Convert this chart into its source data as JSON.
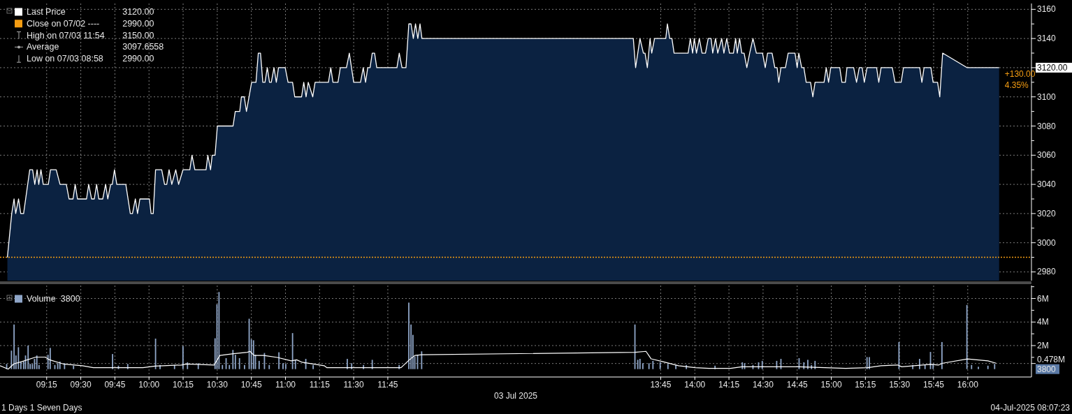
{
  "chart_data": [
    {
      "type": "area",
      "xlim": [
        8.908,
        16.467
      ],
      "ylim": [
        2974,
        3164
      ],
      "grid": true,
      "tick_labels": "y",
      "legend": "top left",
      "xticks": [
        {
          "value": 9.25,
          "label": null
        },
        {
          "value": 9.5,
          "label": null
        },
        {
          "value": 9.75,
          "label": null
        },
        {
          "value": 10,
          "label": null
        },
        {
          "value": 10.25,
          "label": null
        },
        {
          "value": 10.5,
          "label": null
        },
        {
          "value": 10.75,
          "label": null
        },
        {
          "value": 11,
          "label": null
        },
        {
          "value": 11.25,
          "label": null
        },
        {
          "value": 11.5,
          "label": null
        },
        {
          "value": 11.75,
          "label": null
        },
        {
          "value": 13.75,
          "label": null
        },
        {
          "value": 14,
          "label": null
        },
        {
          "value": 14.25,
          "label": null
        },
        {
          "value": 14.5,
          "label": null
        },
        {
          "value": 14.75,
          "label": null
        },
        {
          "value": 15,
          "label": null
        },
        {
          "value": 15.25,
          "label": null
        },
        {
          "value": 15.5,
          "label": null
        },
        {
          "value": 15.75,
          "label": null
        },
        {
          "value": 16,
          "label": null
        }
      ],
      "yticks": [
        2980,
        {
          "value": 2990,
          "label": null
        },
        3000,
        {
          "value": 3010,
          "label": null
        },
        3020,
        {
          "value": 3030,
          "label": null
        },
        3040,
        {
          "value": 3050,
          "label": null
        },
        3060,
        {
          "value": 3070,
          "label": null
        },
        3080,
        {
          "value": 3090,
          "label": null
        },
        3100,
        {
          "value": 3110,
          "label": null
        },
        {
          "value": 3120,
          "label": "3120.00"
        },
        {
          "value": 3130,
          "label": null
        },
        3140,
        {
          "value": 3150,
          "label": null
        },
        3160
      ],
      "series": [
        {
          "name": "Last Price",
          "color": "#ffffff",
          "x": [
            8.962,
            8.994,
            9.011,
            9.023,
            9.044,
            9.06,
            9.081,
            9.126,
            9.147,
            9.163,
            9.18,
            9.192,
            9.208,
            9.225,
            9.262,
            9.278,
            9.32,
            9.348,
            9.394,
            9.414,
            9.443,
            9.459,
            9.476,
            9.542,
            9.558,
            9.579,
            9.599,
            9.616,
            9.632,
            9.661,
            9.682,
            9.698,
            9.719,
            9.731,
            9.747,
            9.764,
            9.83,
            9.863,
            9.879,
            9.9,
            9.916,
            9.933,
            10.003,
            10.015,
            10.031,
            10.048,
            10.093,
            10.114,
            10.13,
            10.147,
            10.167,
            10.196,
            10.217,
            10.249,
            10.299,
            10.315,
            10.336,
            10.418,
            10.431,
            10.451,
            10.463,
            10.484,
            10.501,
            10.616,
            10.632,
            10.665,
            10.677,
            10.698,
            10.714,
            10.752,
            10.784,
            10.801,
            10.817,
            10.834,
            10.85,
            10.867,
            10.883,
            10.896,
            10.916,
            10.933,
            10.949,
            10.998,
            11.019,
            11.052,
            11.068,
            11.118,
            11.134,
            11.151,
            11.167,
            11.2,
            11.217,
            11.315,
            11.332,
            11.348,
            11.385,
            11.402,
            11.447,
            11.468,
            11.5,
            11.55,
            11.57,
            11.587,
            11.603,
            11.62,
            11.636,
            11.653,
            11.669,
            11.817,
            11.834,
            11.854,
            11.883,
            11.904,
            11.92,
            11.937,
            11.953,
            11.97,
            11.986,
            12.0,
            13.5,
            13.549,
            13.566,
            13.598,
            13.623,
            13.635,
            13.652,
            13.672,
            13.684,
            13.705,
            13.787,
            13.799,
            13.816,
            13.832,
            13.848,
            13.951,
            13.967,
            13.984,
            13.996,
            14.012,
            14.033,
            14.053,
            14.078,
            14.098,
            14.119,
            14.131,
            14.152,
            14.168,
            14.197,
            14.213,
            14.234,
            14.254,
            14.283,
            14.299,
            14.311,
            14.328,
            14.344,
            14.361,
            14.381,
            14.402,
            14.426,
            14.451,
            14.496,
            14.516,
            14.533,
            14.566,
            14.586,
            14.603,
            14.615,
            14.631,
            14.664,
            14.684,
            14.734,
            14.75,
            14.762,
            14.783,
            14.799,
            14.816,
            14.848,
            14.865,
            14.881,
            14.947,
            14.963,
            14.98,
            14.996,
            15.062,
            15.078,
            15.103,
            15.115,
            15.164,
            15.185,
            15.205,
            15.226,
            15.242,
            15.262,
            15.332,
            15.348,
            15.365,
            15.447,
            15.467,
            15.512,
            15.529,
            15.648,
            15.664,
            15.68,
            15.73,
            15.746,
            15.779,
            15.795,
            15.816,
            15.996,
            16.23
          ],
          "values": [
            2990,
            3020,
            3030,
            3020,
            3030,
            3020,
            3020,
            3050,
            3050,
            3040,
            3050,
            3040,
            3050,
            3040,
            3040,
            3050,
            3050,
            3040,
            3040,
            3030,
            3030,
            3040,
            3030,
            3030,
            3040,
            3030,
            3030,
            3040,
            3030,
            3030,
            3040,
            3030,
            3040,
            3040,
            3050,
            3040,
            3040,
            3020,
            3020,
            3030,
            3020,
            3030,
            3030,
            3020,
            3020,
            3050,
            3050,
            3040,
            3040,
            3050,
            3040,
            3050,
            3040,
            3050,
            3050,
            3060,
            3050,
            3050,
            3060,
            3050,
            3060,
            3060,
            3080,
            3080,
            3090,
            3090,
            3100,
            3100,
            3090,
            3110,
            3110,
            3130,
            3130,
            3110,
            3110,
            3120,
            3110,
            3110,
            3120,
            3110,
            3120,
            3120,
            3110,
            3110,
            3100,
            3100,
            3110,
            3100,
            3110,
            3100,
            3110,
            3110,
            3120,
            3110,
            3110,
            3120,
            3120,
            3130,
            3110,
            3110,
            3120,
            3110,
            3120,
            3120,
            3130,
            3130,
            3120,
            3120,
            3130,
            3120,
            3120,
            3150,
            3150,
            3140,
            3150,
            3140,
            3150,
            3140,
            3140,
            3140,
            3120,
            3140,
            3130,
            3130,
            3120,
            3140,
            3130,
            3140,
            3140,
            3150,
            3140,
            3140,
            3130,
            3130,
            3140,
            3130,
            3140,
            3130,
            3140,
            3130,
            3130,
            3140,
            3140,
            3130,
            3140,
            3130,
            3140,
            3130,
            3140,
            3130,
            3130,
            3140,
            3130,
            3140,
            3130,
            3130,
            3120,
            3130,
            3140,
            3130,
            3130,
            3120,
            3130,
            3130,
            3120,
            3120,
            3110,
            3120,
            3120,
            3130,
            3130,
            3120,
            3130,
            3120,
            3120,
            3110,
            3110,
            3100,
            3110,
            3110,
            3120,
            3110,
            3120,
            3120,
            3110,
            3110,
            3120,
            3120,
            3110,
            3120,
            3120,
            3110,
            3120,
            3120,
            3110,
            3120,
            3120,
            3110,
            3110,
            3120,
            3120,
            3110,
            3120,
            3120,
            3110,
            3110,
            3100,
            3130,
            3120,
            3120
          ]
        }
      ],
      "ref_lines": [
        {
          "axis": "y",
          "value": 2990,
          "label": "Close on 07/02 ----",
          "color": "#f39c12",
          "line_style": "dotted"
        }
      ],
      "annotations": [
        "3120.00",
        "2990.00",
        "High on 07/03 11:54",
        "3150.00",
        "Average",
        "3097.6558",
        "Low on 07/03 08:58",
        "2990.00",
        {
          "text": "+130.00",
          "x": 16.23,
          "y": 3120
        },
        {
          "text": "4.35%",
          "x": 16.23,
          "y": 3120
        }
      ]
    },
    {
      "type": "bar",
      "title": "1 Days 1 Seven Days",
      "subtitle": "04-Jul-2025 08:07:23",
      "xlabel": "03 Jul 2025",
      "xlim": [
        8.908,
        16.467
      ],
      "ylim": [
        -0.67,
        7.1
      ],
      "grid": true,
      "legend": "top left",
      "xticks": [
        {
          "value": 9.25,
          "label": "09:15"
        },
        {
          "value": 9.5,
          "label": "09:30"
        },
        {
          "value": 9.75,
          "label": "09:45"
        },
        {
          "value": 10,
          "label": "10:00"
        },
        {
          "value": 10.25,
          "label": "10:15"
        },
        {
          "value": 10.5,
          "label": "10:30"
        },
        {
          "value": 10.75,
          "label": "10:45"
        },
        {
          "value": 11,
          "label": "11:00"
        },
        {
          "value": 11.25,
          "label": "11:15"
        },
        {
          "value": 11.5,
          "label": "11:30"
        },
        {
          "value": 11.75,
          "label": "11:45"
        },
        {
          "value": 13.75,
          "label": "13:45"
        },
        {
          "value": 14,
          "label": "14:00"
        },
        {
          "value": 14.25,
          "label": "14:15"
        },
        {
          "value": 14.5,
          "label": "14:30"
        },
        {
          "value": 14.75,
          "label": "14:45"
        },
        {
          "value": 15,
          "label": "15:00"
        },
        {
          "value": 15.25,
          "label": "15:15"
        },
        {
          "value": 15.5,
          "label": "15:30"
        },
        {
          "value": 15.75,
          "label": "15:45"
        },
        {
          "value": 16,
          "label": "16:00"
        }
      ],
      "yticks": [
        {
          "value": 0.478,
          "label": "0.478M"
        },
        {
          "value": 1,
          "label": null
        },
        {
          "value": 2,
          "label": "2M"
        },
        {
          "value": 3,
          "label": null
        },
        {
          "value": 4,
          "label": "4M"
        },
        {
          "value": 5,
          "label": null
        },
        {
          "value": 6,
          "label": "6M"
        },
        {
          "value": 7,
          "label": null
        }
      ],
      "series": [
        {
          "name": "Volume",
          "color": "#8fa6c8",
          "x": [
            8.957,
            8.992,
            9.011,
            9.025,
            9.043,
            9.061,
            9.081,
            9.095,
            9.114,
            9.129,
            9.145,
            9.161,
            9.178,
            9.194,
            9.26,
            9.276,
            9.31,
            9.331,
            9.347,
            9.381,
            9.447,
            9.733,
            9.776,
            9.844,
            10.048,
            10.081,
            10.187,
            10.249,
            10.282,
            10.361,
            10.484,
            10.498,
            10.513,
            10.538,
            10.565,
            10.589,
            10.615,
            10.633,
            10.663,
            10.7,
            10.734,
            10.75,
            10.766,
            10.78,
            10.807,
            10.846,
            10.881,
            10.952,
            10.982,
            11.002,
            11.052,
            11.073,
            11.149,
            11.203,
            11.453,
            11.485,
            11.572,
            11.636,
            11.833,
            11.904,
            11.92,
            11.934,
            11.948,
            11.968,
            11.998,
            13.561,
            13.582,
            13.598,
            13.619,
            13.664,
            13.693,
            13.746,
            13.803,
            13.861,
            13.938,
            14.148,
            14.348,
            14.365,
            14.426,
            14.467,
            14.494,
            14.6,
            14.631,
            14.764,
            14.799,
            14.828,
            14.855,
            14.881,
            15.262,
            15.279,
            15.496,
            15.597,
            15.647,
            15.687,
            15.727,
            15.746,
            15.811,
            15.994,
            16.028,
            16.078,
            16.148,
            16.197
          ],
          "values": [
            0.44,
            1.57,
            3.79,
            1.16,
            1.86,
            0.64,
            0.64,
            1.16,
            2.0,
            0.44,
            0.44,
            0.87,
            1.16,
            0.35,
            1.22,
            1.8,
            0.35,
            0.5,
            0.64,
            0.5,
            0.29,
            1.28,
            0.29,
            0.44,
            2.59,
            0.35,
            0.35,
            1.95,
            0.58,
            0.5,
            2.62,
            5.5,
            6.55,
            0.35,
            0.93,
            0.35,
            1.63,
            1.22,
            0.93,
            0.35,
            4.28,
            2.53,
            2.45,
            1.22,
            0.7,
            1.37,
            0.35,
            1.43,
            0.5,
            0.44,
            3.06,
            0.79,
            0.87,
            0.35,
            0.87,
            0.5,
            0.35,
            0.79,
            0.35,
            5.65,
            3.79,
            2.91,
            1.08,
            1.22,
            1.51,
            3.79,
            0.79,
            0.87,
            0.5,
            0.5,
            0.7,
            0.58,
            0.44,
            0.35,
            0.35,
            0.29,
            0.58,
            0.5,
            0.35,
            0.58,
            0.7,
            0.7,
            0.87,
            0.93,
            0.58,
            0.79,
            0.35,
            0.7,
            1.02,
            1.02,
            2.3,
            0.35,
            0.87,
            0.35,
            1.46,
            0.44,
            2.3,
            5.45,
            0.35,
            0.2,
            0.29,
            0.44
          ]
        },
        {
          "type": "line",
          "color": "#ffffff",
          "x": [
            8.908,
            8.968,
            9.009,
            9.069,
            9.17,
            9.24,
            9.271,
            9.371,
            9.512,
            9.592,
            9.955,
            10.045,
            10.237,
            10.277,
            10.478,
            10.519,
            10.619,
            10.72,
            10.74,
            10.77,
            10.841,
            10.941,
            11.042,
            11.082,
            11.123,
            11.284,
            11.304,
            11.847,
            11.908,
            11.948,
            11.998,
            13.561,
            13.642,
            13.68,
            13.762,
            13.881,
            14.003,
            14.103,
            14.262,
            14.344,
            14.404,
            14.764,
            15.105,
            15.266,
            15.365,
            15.487,
            15.516,
            15.727,
            15.787,
            15.817,
            15.998,
            16.148,
            16.208
          ],
          "values": [
            0.29,
            0,
            0.44,
            0.64,
            1.02,
            1.02,
            0.79,
            0.44,
            0.29,
            0.12,
            0.12,
            0.26,
            0.35,
            0.44,
            0.35,
            1.16,
            1.31,
            1.43,
            1.51,
            1.16,
            1.16,
            0.99,
            0.7,
            0.79,
            0.58,
            0.29,
            0.12,
            0.12,
            0.79,
            1.16,
            1.22,
            1.43,
            1.51,
            0.87,
            0.64,
            0.29,
            0.12,
            0.06,
            0.06,
            0.2,
            0.2,
            0.2,
            0.06,
            0.12,
            0.29,
            0.35,
            0.2,
            0.41,
            0.35,
            0.5,
            0.87,
            0.7,
            0.5
          ]
        }
      ],
      "annotations": [
        "3800",
        "3800"
      ]
    }
  ]
}
